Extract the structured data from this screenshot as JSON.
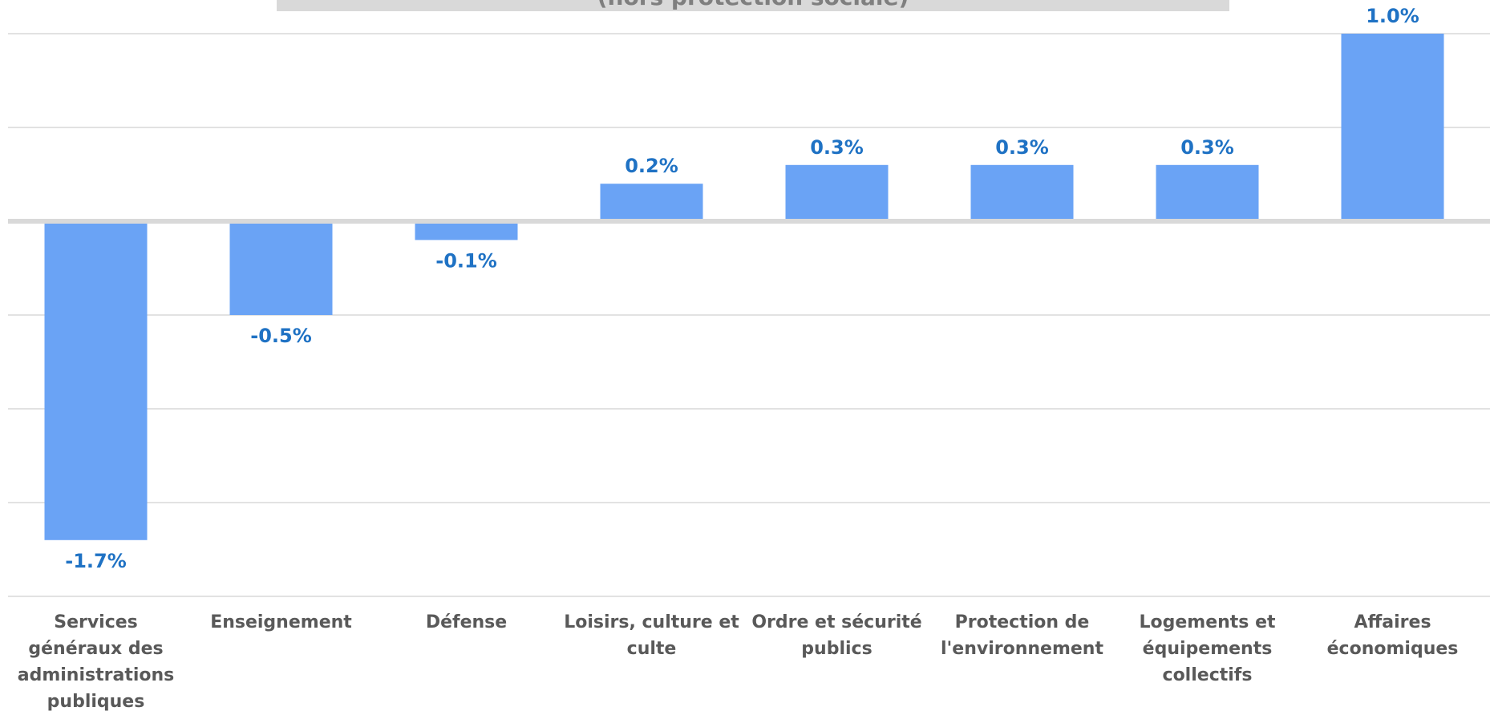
{
  "chart_data": {
    "type": "bar",
    "title": "(hors protection sociale)",
    "categories": [
      "Services généraux des administrations publiques",
      "Enseignement",
      "Défense",
      "Loisirs, culture et culte",
      "Ordre et sécurité publics",
      "Protection de l'environnement",
      "Logements et équipements collectifs",
      "Affaires économiques"
    ],
    "values": [
      -1.7,
      -0.5,
      -0.1,
      0.2,
      0.3,
      0.3,
      0.3,
      1.0
    ],
    "data_labels": [
      "-1.7%",
      "-0.5%",
      "-0.1%",
      "0.2%",
      "0.3%",
      "0.3%",
      "0.3%",
      "1.0%"
    ],
    "ylim": [
      -2.0,
      1.0
    ],
    "grid": true,
    "legend": "none",
    "colors": {
      "bar": "#6aa3f5",
      "label": "#1f72c4",
      "category_text": "#595959",
      "grid": "#d9d9d9"
    }
  }
}
